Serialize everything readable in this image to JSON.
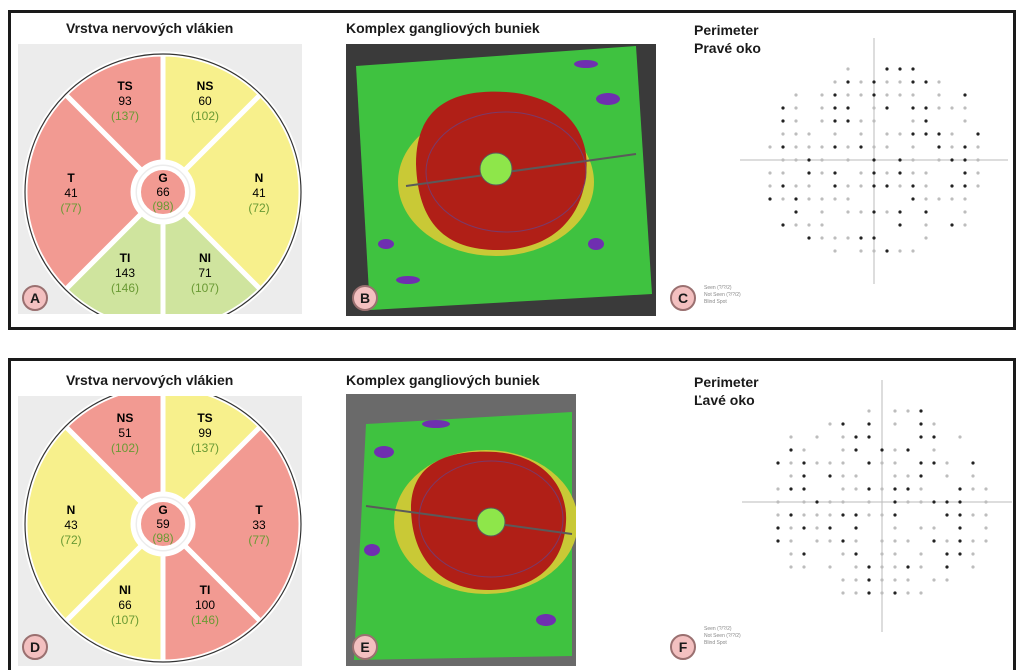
{
  "colors": {
    "red": "#f29a92",
    "yellow": "#f7f08c",
    "green": "#cfe49e",
    "ref_text": "#6a9a34",
    "badge": "#f3c0c0"
  },
  "top": {
    "rnfl_title": "Vrstva nervových vlákien",
    "gcc_title": "Komplex gangliových buniek",
    "perimeter_title": "Perimeter",
    "eye_label": "Pravé oko",
    "letters": [
      "A",
      "B",
      "C"
    ],
    "legend": [
      "Seen (?/?/2)",
      "Not Seen (?/?/2)",
      "Blind Spot"
    ],
    "sectors": {
      "TS": {
        "code": "TS",
        "value": "93",
        "ref": "(137)",
        "status": "red"
      },
      "NS": {
        "code": "NS",
        "value": "60",
        "ref": "(102)",
        "status": "yellow"
      },
      "N": {
        "code": "N",
        "value": "41",
        "ref": "(72)",
        "status": "yellow"
      },
      "NI": {
        "code": "NI",
        "value": "71",
        "ref": "(107)",
        "status": "green"
      },
      "TI": {
        "code": "TI",
        "value": "143",
        "ref": "(146)",
        "status": "green"
      },
      "T": {
        "code": "T",
        "value": "41",
        "ref": "(77)",
        "status": "red"
      },
      "G": {
        "code": "G",
        "value": "66",
        "ref": "(98)",
        "status": "red"
      }
    }
  },
  "bottom": {
    "rnfl_title": "Vrstva nervových vlákien",
    "gcc_title": "Komplex gangliových buniek",
    "perimeter_title": "Perimeter",
    "eye_label": "Ľavé oko",
    "letters": [
      "D",
      "E",
      "F"
    ],
    "legend": [
      "Seen (?/?/2)",
      "Not Seen (?/?/2)",
      "Blind Spot"
    ],
    "sectors": {
      "NS": {
        "code": "NS",
        "value": "51",
        "ref": "(102)",
        "status": "red"
      },
      "TS": {
        "code": "TS",
        "value": "99",
        "ref": "(137)",
        "status": "yellow"
      },
      "T": {
        "code": "T",
        "value": "33",
        "ref": "(77)",
        "status": "red"
      },
      "TI": {
        "code": "TI",
        "value": "100",
        "ref": "(146)",
        "status": "red"
      },
      "NI": {
        "code": "NI",
        "value": "66",
        "ref": "(107)",
        "status": "yellow"
      },
      "N": {
        "code": "N",
        "value": "43",
        "ref": "(72)",
        "status": "yellow"
      },
      "G": {
        "code": "G",
        "value": "59",
        "ref": "(98)",
        "status": "red"
      }
    }
  }
}
